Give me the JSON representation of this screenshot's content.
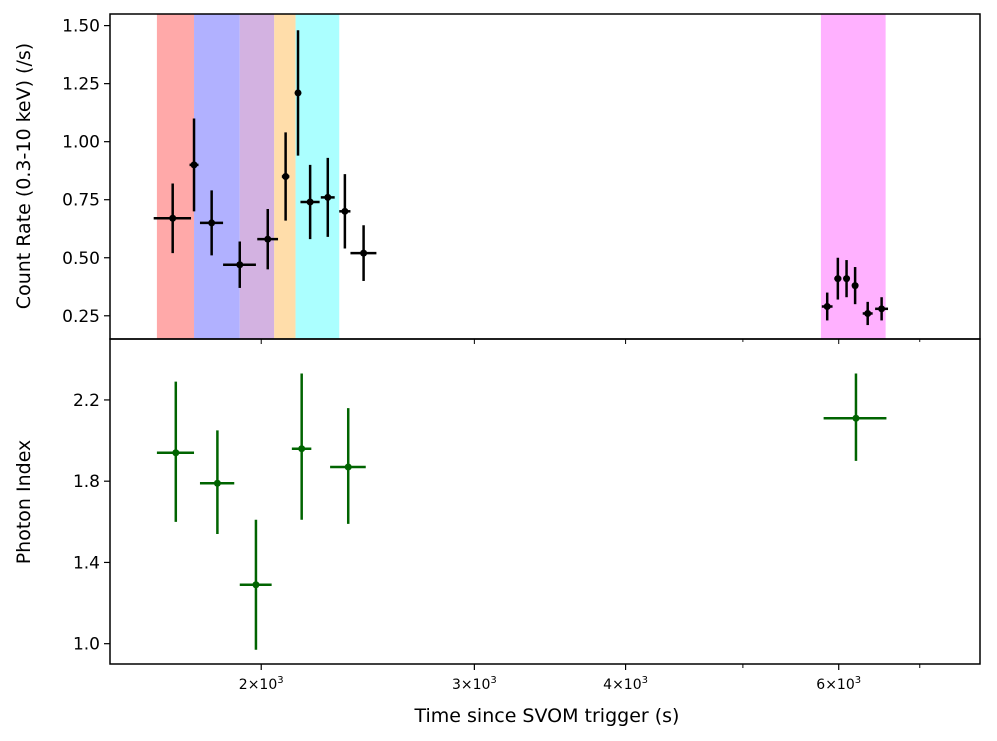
{
  "chart_data": [
    {
      "type": "scatter",
      "panel": "top",
      "ylabel": "Count Rate (0.3-10 keV) (/s)",
      "ylim": [
        0.15,
        1.55
      ],
      "yticks": [
        0.25,
        0.5,
        0.75,
        1.0,
        1.25,
        1.5
      ],
      "ytick_labels": [
        "0.25",
        "0.50",
        "0.75",
        "1.00",
        "1.25",
        "1.50"
      ],
      "series": [
        {
          "name": "count-rate",
          "color": "#000000",
          "points": [
            {
              "x": 1690,
              "y": 0.67,
              "xerr": [
                60,
                60
              ],
              "yerr": 0.15
            },
            {
              "x": 1760,
              "y": 0.9,
              "xerr": [
                15,
                15
              ],
              "yerr": 0.2
            },
            {
              "x": 1820,
              "y": 0.65,
              "xerr": [
                40,
                40
              ],
              "yerr": 0.14
            },
            {
              "x": 1920,
              "y": 0.47,
              "xerr": [
                60,
                60
              ],
              "yerr": 0.1
            },
            {
              "x": 2025,
              "y": 0.58,
              "xerr": [
                40,
                40
              ],
              "yerr": 0.13
            },
            {
              "x": 2095,
              "y": 0.85,
              "xerr": [
                15,
                15
              ],
              "yerr": 0.19
            },
            {
              "x": 2145,
              "y": 1.21,
              "xerr": [
                10,
                10
              ],
              "yerr": 0.27
            },
            {
              "x": 2195,
              "y": 0.74,
              "xerr": [
                40,
                40
              ],
              "yerr": 0.16
            },
            {
              "x": 2270,
              "y": 0.76,
              "xerr": [
                30,
                30
              ],
              "yerr": 0.17
            },
            {
              "x": 2345,
              "y": 0.7,
              "xerr": [
                25,
                25
              ],
              "yerr": 0.16
            },
            {
              "x": 2430,
              "y": 0.52,
              "xerr": [
                60,
                60
              ],
              "yerr": 0.12
            },
            {
              "x": 5870,
              "y": 0.29,
              "xerr": [
                60,
                60
              ],
              "yerr": 0.06
            },
            {
              "x": 5990,
              "y": 0.41,
              "xerr": [
                40,
                40
              ],
              "yerr": 0.09
            },
            {
              "x": 6090,
              "y": 0.41,
              "xerr": [
                25,
                25
              ],
              "yerr": 0.08
            },
            {
              "x": 6190,
              "y": 0.38,
              "xerr": [
                25,
                25
              ],
              "yerr": 0.08
            },
            {
              "x": 6340,
              "y": 0.26,
              "xerr": [
                60,
                60
              ],
              "yerr": 0.05
            },
            {
              "x": 6510,
              "y": 0.28,
              "xerr": [
                80,
                80
              ],
              "yerr": 0.05
            }
          ]
        }
      ],
      "shaded_intervals": [
        {
          "x0": 1640,
          "x1": 1760,
          "color": "#ff9a9a"
        },
        {
          "x0": 1760,
          "x1": 1920,
          "color": "#a3a3ff"
        },
        {
          "x0": 1920,
          "x1": 2050,
          "color": "#cba4dc"
        },
        {
          "x0": 2050,
          "x1": 2135,
          "color": "#ffd79b"
        },
        {
          "x0": 2135,
          "x1": 2320,
          "color": "#9cffff"
        },
        {
          "x0": 5800,
          "x1": 6560,
          "color": "#ffa3ff"
        }
      ]
    },
    {
      "type": "scatter",
      "panel": "bottom",
      "ylabel": "Photon Index",
      "xlabel": "Time since SVOM trigger (s)",
      "ylim": [
        0.9,
        2.5
      ],
      "yticks": [
        1.0,
        1.4,
        1.8,
        2.2
      ],
      "ytick_labels": [
        "1.0",
        "1.4",
        "1.8",
        "2.2"
      ],
      "series": [
        {
          "name": "photon-index",
          "color": "#006400",
          "points": [
            {
              "x": 1700,
              "y": 1.94,
              "xerr": [
                60,
                60
              ],
              "yerr_low": 0.34,
              "yerr_high": 0.35
            },
            {
              "x": 1840,
              "y": 1.79,
              "xerr": [
                60,
                60
              ],
              "yerr_low": 0.25,
              "yerr_high": 0.26
            },
            {
              "x": 1980,
              "y": 1.29,
              "xerr": [
                60,
                60
              ],
              "yerr_low": 0.32,
              "yerr_high": 0.32
            },
            {
              "x": 2160,
              "y": 1.96,
              "xerr": [
                40,
                40
              ],
              "yerr_low": 0.35,
              "yerr_high": 0.37
            },
            {
              "x": 2360,
              "y": 1.87,
              "xerr": [
                80,
                80
              ],
              "yerr_low": 0.28,
              "yerr_high": 0.29
            },
            {
              "x": 6200,
              "y": 2.11,
              "xerr": [
                370,
                370
              ],
              "yerr_low": 0.21,
              "yerr_high": 0.22
            }
          ]
        }
      ],
      "xscale": "log",
      "xlim": [
        1500,
        7850
      ],
      "xticks_major": [
        2000,
        3000,
        4000,
        6000
      ],
      "xtick_labels": [
        {
          "mant": "2",
          "exp": "3"
        },
        {
          "mant": "3",
          "exp": "3"
        },
        {
          "mant": "4",
          "exp": "3"
        },
        {
          "mant": "6",
          "exp": "3"
        }
      ],
      "xtick_times": "×10",
      "xticks_minor": [
        5000,
        7000
      ]
    }
  ]
}
